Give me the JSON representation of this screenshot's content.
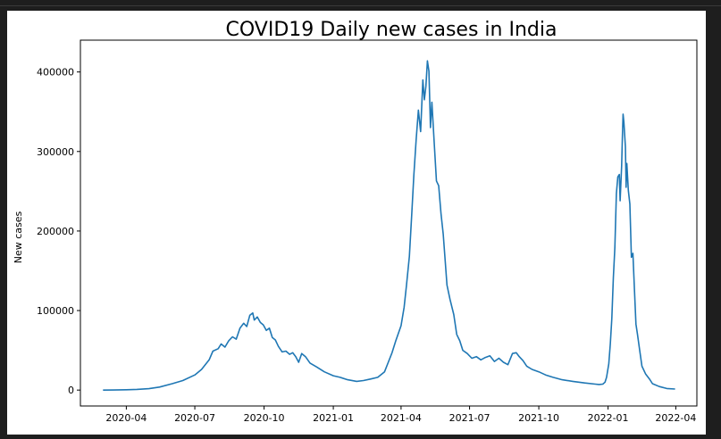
{
  "chart_data": {
    "type": "line",
    "title": "COVID19 Daily new cases in India",
    "xlabel": "",
    "ylabel": "New cases",
    "x_ticks": [
      "2020-04",
      "2020-07",
      "2020-10",
      "2021-01",
      "2021-04",
      "2021-07",
      "2021-10",
      "2022-01",
      "2022-04"
    ],
    "y_ticks": [
      0,
      100000,
      200000,
      300000,
      400000
    ],
    "x_range": [
      "2020-01-31",
      "2022-04-29"
    ],
    "ylim": [
      -20000,
      440000
    ],
    "grid": false,
    "line_color": "#1f77b4",
    "series": [
      {
        "points": [
          [
            "2020-03-01",
            0
          ],
          [
            "2020-03-15",
            50
          ],
          [
            "2020-04-01",
            400
          ],
          [
            "2020-04-15",
            900
          ],
          [
            "2020-05-01",
            1800
          ],
          [
            "2020-05-15",
            3800
          ],
          [
            "2020-06-01",
            8000
          ],
          [
            "2020-06-15",
            12000
          ],
          [
            "2020-07-01",
            19000
          ],
          [
            "2020-07-10",
            26000
          ],
          [
            "2020-07-20",
            38000
          ],
          [
            "2020-07-25",
            49000
          ],
          [
            "2020-08-01",
            52000
          ],
          [
            "2020-08-05",
            58000
          ],
          [
            "2020-08-10",
            54000
          ],
          [
            "2020-08-15",
            62000
          ],
          [
            "2020-08-20",
            67000
          ],
          [
            "2020-08-25",
            64000
          ],
          [
            "2020-08-30",
            78000
          ],
          [
            "2020-09-04",
            84000
          ],
          [
            "2020-09-08",
            80000
          ],
          [
            "2020-09-12",
            94000
          ],
          [
            "2020-09-16",
            97000
          ],
          [
            "2020-09-18",
            88000
          ],
          [
            "2020-09-22",
            92000
          ],
          [
            "2020-09-26",
            85000
          ],
          [
            "2020-09-30",
            82000
          ],
          [
            "2020-10-04",
            75000
          ],
          [
            "2020-10-08",
            78000
          ],
          [
            "2020-10-12",
            66000
          ],
          [
            "2020-10-16",
            63000
          ],
          [
            "2020-10-20",
            55000
          ],
          [
            "2020-10-25",
            48000
          ],
          [
            "2020-10-30",
            49000
          ],
          [
            "2020-11-04",
            45000
          ],
          [
            "2020-11-08",
            47000
          ],
          [
            "2020-11-12",
            42000
          ],
          [
            "2020-11-16",
            35000
          ],
          [
            "2020-11-20",
            46000
          ],
          [
            "2020-11-25",
            42000
          ],
          [
            "2020-12-01",
            34000
          ],
          [
            "2020-12-10",
            29000
          ],
          [
            "2020-12-20",
            23000
          ],
          [
            "2021-01-01",
            18000
          ],
          [
            "2021-01-10",
            16000
          ],
          [
            "2021-01-20",
            13000
          ],
          [
            "2021-02-01",
            11000
          ],
          [
            "2021-02-10",
            12000
          ],
          [
            "2021-02-20",
            14000
          ],
          [
            "2021-03-01",
            16000
          ],
          [
            "2021-03-10",
            23000
          ],
          [
            "2021-03-15",
            35000
          ],
          [
            "2021-03-20",
            47000
          ],
          [
            "2021-03-25",
            62000
          ],
          [
            "2021-04-01",
            81000
          ],
          [
            "2021-04-05",
            104000
          ],
          [
            "2021-04-08",
            130000
          ],
          [
            "2021-04-12",
            168000
          ],
          [
            "2021-04-15",
            218000
          ],
          [
            "2021-04-18",
            270000
          ],
          [
            "2021-04-21",
            315000
          ],
          [
            "2021-04-24",
            352000
          ],
          [
            "2021-04-27",
            325000
          ],
          [
            "2021-04-30",
            390000
          ],
          [
            "2021-05-02",
            365000
          ],
          [
            "2021-05-04",
            382000
          ],
          [
            "2021-05-06",
            414000
          ],
          [
            "2021-05-08",
            401000
          ],
          [
            "2021-05-10",
            330000
          ],
          [
            "2021-05-12",
            362000
          ],
          [
            "2021-05-15",
            311000
          ],
          [
            "2021-05-18",
            263000
          ],
          [
            "2021-05-21",
            257000
          ],
          [
            "2021-05-24",
            222000
          ],
          [
            "2021-05-27",
            196000
          ],
          [
            "2021-06-01",
            132000
          ],
          [
            "2021-06-05",
            114000
          ],
          [
            "2021-06-10",
            95000
          ],
          [
            "2021-06-14",
            70000
          ],
          [
            "2021-06-18",
            62000
          ],
          [
            "2021-06-22",
            50000
          ],
          [
            "2021-06-28",
            46000
          ],
          [
            "2021-07-04",
            40000
          ],
          [
            "2021-07-10",
            42000
          ],
          [
            "2021-07-16",
            38000
          ],
          [
            "2021-07-22",
            41000
          ],
          [
            "2021-07-28",
            43000
          ],
          [
            "2021-08-03",
            36000
          ],
          [
            "2021-08-09",
            40000
          ],
          [
            "2021-08-15",
            35000
          ],
          [
            "2021-08-21",
            32000
          ],
          [
            "2021-08-27",
            46000
          ],
          [
            "2021-09-01",
            47000
          ],
          [
            "2021-09-05",
            42000
          ],
          [
            "2021-09-10",
            37000
          ],
          [
            "2021-09-15",
            30000
          ],
          [
            "2021-09-22",
            26000
          ],
          [
            "2021-10-01",
            23000
          ],
          [
            "2021-10-10",
            19000
          ],
          [
            "2021-10-20",
            16000
          ],
          [
            "2021-11-01",
            13000
          ],
          [
            "2021-11-15",
            11000
          ],
          [
            "2021-12-01",
            9000
          ],
          [
            "2021-12-15",
            7500
          ],
          [
            "2021-12-20",
            7000
          ],
          [
            "2021-12-25",
            7500
          ],
          [
            "2021-12-28",
            10000
          ],
          [
            "2021-12-30",
            16000
          ],
          [
            "2022-01-02",
            33000
          ],
          [
            "2022-01-04",
            58000
          ],
          [
            "2022-01-06",
            90000
          ],
          [
            "2022-01-08",
            141000
          ],
          [
            "2022-01-10",
            179000
          ],
          [
            "2022-01-12",
            247000
          ],
          [
            "2022-01-14",
            268000
          ],
          [
            "2022-01-16",
            271000
          ],
          [
            "2022-01-17",
            238000
          ],
          [
            "2022-01-19",
            282000
          ],
          [
            "2022-01-20",
            317000
          ],
          [
            "2022-01-21",
            347000
          ],
          [
            "2022-01-22",
            337000
          ],
          [
            "2022-01-24",
            306000
          ],
          [
            "2022-01-25",
            255000
          ],
          [
            "2022-01-26",
            285000
          ],
          [
            "2022-01-28",
            251000
          ],
          [
            "2022-01-30",
            234000
          ],
          [
            "2022-02-01",
            167000
          ],
          [
            "2022-02-03",
            172000
          ],
          [
            "2022-02-05",
            127000
          ],
          [
            "2022-02-07",
            83000
          ],
          [
            "2022-02-09",
            71000
          ],
          [
            "2022-02-12",
            50000
          ],
          [
            "2022-02-15",
            30000
          ],
          [
            "2022-02-20",
            20000
          ],
          [
            "2022-02-25",
            14000
          ],
          [
            "2022-03-01",
            8000
          ],
          [
            "2022-03-10",
            4500
          ],
          [
            "2022-03-20",
            2000
          ],
          [
            "2022-03-31",
            1300
          ]
        ]
      }
    ]
  }
}
